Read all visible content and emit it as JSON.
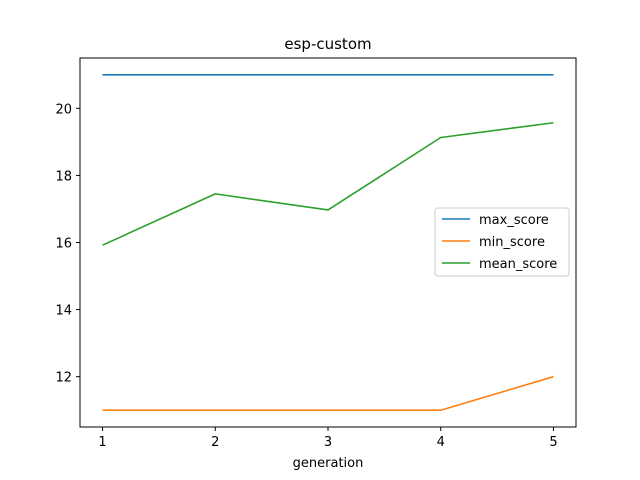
{
  "chart_data": {
    "type": "line",
    "title": "esp-custom",
    "xlabel": "generation",
    "ylabel": "",
    "x": [
      1,
      2,
      3,
      4,
      5
    ],
    "xticks": [
      "1",
      "2",
      "3",
      "4",
      "5"
    ],
    "yticks": [
      "12",
      "14",
      "16",
      "18",
      "20"
    ],
    "xlim": [
      0.8,
      5.2
    ],
    "ylim": [
      10.5,
      21.5
    ],
    "grid": false,
    "legend_position": "center-right",
    "series": [
      {
        "name": "max_score",
        "color": "#1f77b4",
        "values": [
          21,
          21,
          21,
          21,
          21
        ]
      },
      {
        "name": "min_score",
        "color": "#ff7f0e",
        "values": [
          11,
          11,
          11,
          11,
          12
        ]
      },
      {
        "name": "mean_score",
        "color": "#2ca02c",
        "values": [
          15.92,
          17.45,
          16.97,
          19.13,
          19.57
        ]
      }
    ]
  }
}
